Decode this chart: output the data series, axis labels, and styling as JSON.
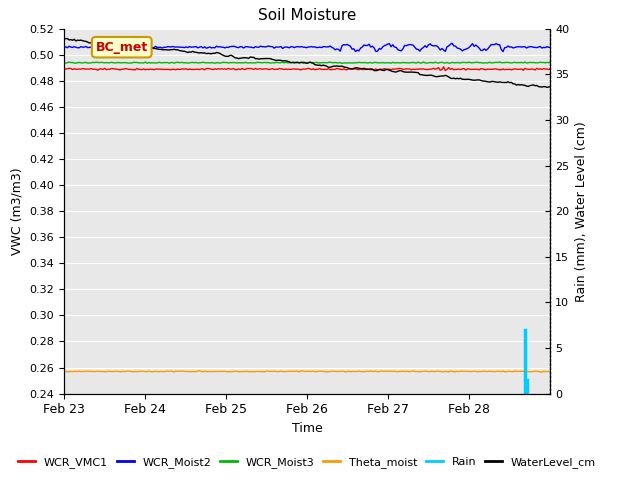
{
  "title": "Soil Moisture",
  "xlabel": "Time",
  "ylabel_left": "VWC (m3/m3)",
  "ylabel_right": "Rain (mm), Water Level (cm)",
  "ylim_left": [
    0.24,
    0.52
  ],
  "ylim_right": [
    0,
    40
  ],
  "yticks_left": [
    0.24,
    0.26,
    0.28,
    0.3,
    0.32,
    0.34,
    0.36,
    0.38,
    0.4,
    0.42,
    0.44,
    0.46,
    0.48,
    0.5,
    0.52
  ],
  "yticks_right": [
    0,
    5,
    10,
    15,
    20,
    25,
    30,
    35,
    40
  ],
  "n_points": 288,
  "date_start": 0,
  "date_end": 6,
  "xtick_positions": [
    0,
    1,
    2,
    3,
    4,
    5
  ],
  "xtick_labels": [
    "Feb 23",
    "Feb 24",
    "Feb 25",
    "Feb 26",
    "Feb 27",
    "Feb 28"
  ],
  "legend_labels": [
    "WCR_VMC1",
    "WCR_Moist2",
    "WCR_Moist3",
    "Theta_moist",
    "Rain",
    "WaterLevel_cm"
  ],
  "legend_colors": [
    "#ff0000",
    "#0000ff",
    "#00bb00",
    "#ff9900",
    "#00ccff",
    "#000000"
  ],
  "annotation_text": "BC_met",
  "bg_color": "#e8e8e8",
  "wcr_vmc1_base": 0.489,
  "wcr_moist2_start": 0.506,
  "wcr_moist2_end": 0.506,
  "wcr_moist3_base": 0.494,
  "theta_moist_base": 0.257,
  "waterlevel_start": 0.512,
  "waterlevel_end": 0.475,
  "rain_spike_index": 272,
  "rain_spike_value": 7.0
}
